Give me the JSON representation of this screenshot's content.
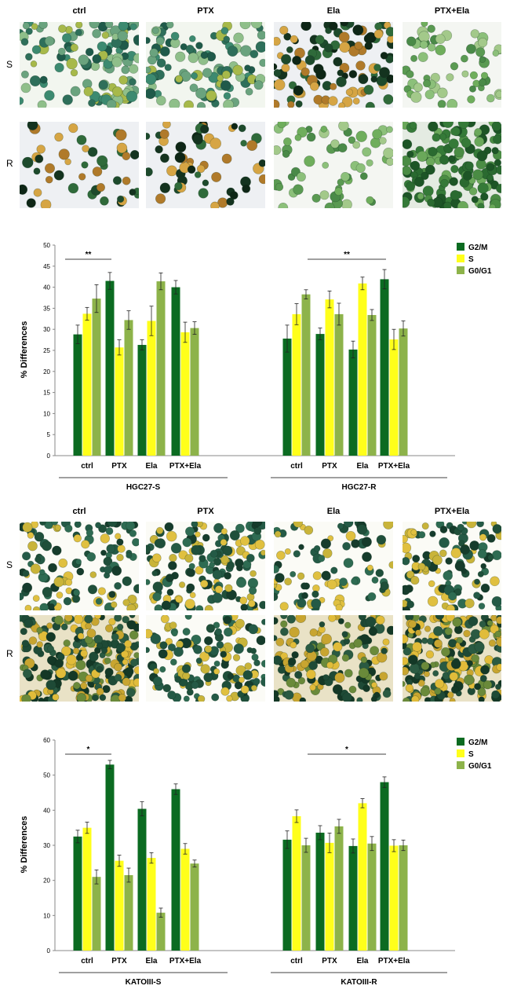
{
  "micro_top": {
    "columns": [
      "ctrl",
      "PTX",
      "Ela",
      "PTX+Ela"
    ],
    "rows": [
      "S",
      "R"
    ]
  },
  "micro_bottom": {
    "columns": [
      "ctrl",
      "PTX",
      "Ela",
      "PTX+Ela"
    ],
    "rows": [
      "S",
      "R"
    ]
  },
  "colors": {
    "g2m": "#0b6b21",
    "s": "#ffff1a",
    "g0g1": "#8db34a"
  },
  "chart_data": [
    {
      "type": "bar",
      "ylabel": "% Differences",
      "ylim": [
        0,
        50
      ],
      "yticks": [
        0,
        5,
        10,
        15,
        20,
        25,
        30,
        35,
        40,
        45,
        50
      ],
      "legend_position": "top-right",
      "groups": [
        "HGC27-S",
        "HGC27-R"
      ],
      "categories": [
        "ctrl",
        "PTX",
        "Ela",
        "PTX+Ela",
        "ctrl",
        "PTX",
        "Ela",
        "PTX+Ela"
      ],
      "series": [
        {
          "name": "G2/M",
          "values": [
            28.8,
            41.5,
            26.3,
            40.0,
            27.8,
            28.9,
            25.2,
            41.9
          ],
          "errors": [
            2.2,
            2.0,
            1.2,
            1.6,
            3.2,
            1.4,
            2.0,
            2.3
          ]
        },
        {
          "name": "S",
          "values": [
            33.7,
            25.7,
            32.0,
            29.3,
            33.6,
            37.1,
            40.9,
            27.6
          ],
          "errors": [
            1.5,
            1.8,
            3.5,
            2.4,
            2.5,
            2.0,
            1.5,
            2.4
          ]
        },
        {
          "name": "G0/G1",
          "values": [
            37.3,
            32.2,
            41.4,
            30.3,
            38.3,
            33.6,
            33.4,
            30.2
          ],
          "errors": [
            3.3,
            2.2,
            2.0,
            1.5,
            1.1,
            2.6,
            1.3,
            1.8
          ]
        }
      ],
      "significance": [
        {
          "label": "**",
          "from": 0,
          "to": 1
        },
        {
          "label": "**",
          "from": 5,
          "to": 7
        }
      ]
    },
    {
      "type": "bar",
      "ylabel": "% Differences",
      "ylim": [
        0,
        60
      ],
      "yticks": [
        0,
        10,
        20,
        30,
        40,
        50,
        60
      ],
      "legend_position": "top-right",
      "groups": [
        "KATOIII-S",
        "KATOIII-R"
      ],
      "categories": [
        "ctrl",
        "PTX",
        "Ela",
        "PTX+Ela",
        "ctrl",
        "PTX",
        "Ela",
        "PTX+Ela"
      ],
      "series": [
        {
          "name": "G2/M",
          "values": [
            32.5,
            53.0,
            40.4,
            46.0,
            31.6,
            33.6,
            29.8,
            48.0
          ],
          "errors": [
            1.8,
            1.2,
            2.0,
            1.5,
            2.5,
            2.0,
            2.0,
            1.5
          ]
        },
        {
          "name": "S",
          "values": [
            35.0,
            25.6,
            26.4,
            29.0,
            38.3,
            30.7,
            42.0,
            29.9
          ],
          "errors": [
            1.6,
            1.6,
            1.5,
            1.5,
            1.8,
            2.8,
            1.3,
            1.7
          ]
        },
        {
          "name": "G0/G1",
          "values": [
            21.0,
            21.5,
            10.8,
            24.8,
            30.0,
            35.4,
            30.5,
            30.0
          ],
          "errors": [
            2.0,
            2.0,
            1.3,
            1.0,
            2.0,
            2.0,
            2.0,
            1.5
          ]
        }
      ],
      "significance": [
        {
          "label": "*",
          "from": 0,
          "to": 1
        },
        {
          "label": "*",
          "from": 5,
          "to": 7
        }
      ]
    }
  ]
}
